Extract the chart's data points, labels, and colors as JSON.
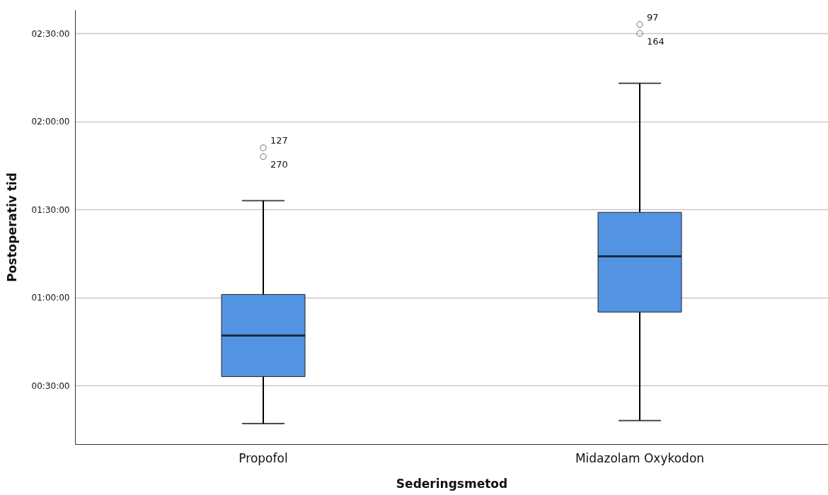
{
  "chart_data": {
    "type": "box",
    "xlabel": "Sederingsmetod",
    "ylabel": "Postoperativ tid",
    "categories": [
      "Propofol",
      "Midazolam Oxykodon"
    ],
    "series": [
      {
        "color": "#5294e2",
        "boxes": [
          {
            "low": 17,
            "q1": 33,
            "median": 47,
            "q3": 61,
            "high": 93,
            "outliers": [
              111,
              108
            ]
          },
          {
            "low": 18,
            "q1": 55,
            "median": 74,
            "q3": 89,
            "high": 133,
            "outliers": [
              153,
              150
            ]
          }
        ]
      }
    ],
    "ylim": [
      10,
      158
    ],
    "yticks": [
      {
        "value": 30,
        "label": "00:30:00"
      },
      {
        "value": 60,
        "label": "01:00:00"
      },
      {
        "value": 90,
        "label": "01:30:00"
      },
      {
        "value": 120,
        "label": "02:00:00"
      },
      {
        "value": 150,
        "label": "02:30:00"
      }
    ],
    "grid": "y",
    "marker": "circle",
    "annotations": [
      "127",
      "270",
      "97",
      "164"
    ]
  }
}
